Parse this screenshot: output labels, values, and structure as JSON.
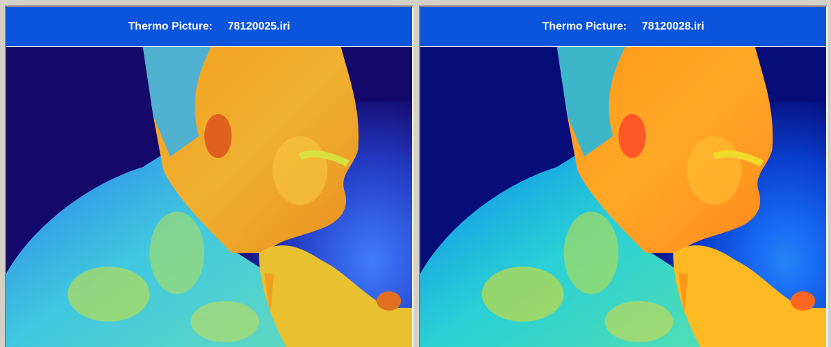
{
  "panels": [
    {
      "title_label": "Thermo Picture:",
      "file_name": "78120025.iri"
    },
    {
      "title_label": "Thermo Picture:",
      "file_name": "78120028.iri"
    }
  ]
}
